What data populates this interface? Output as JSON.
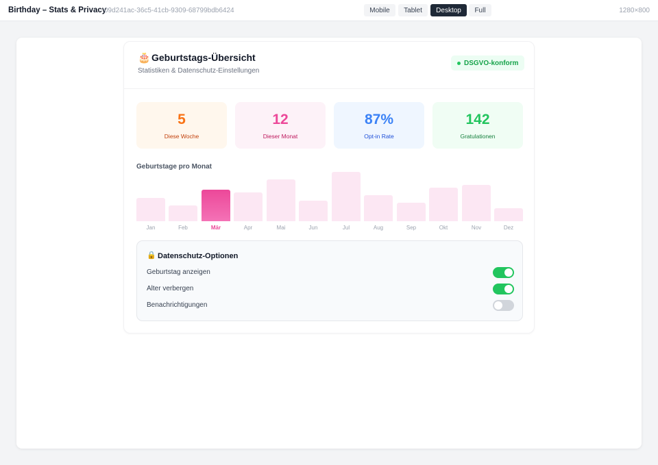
{
  "topbar": {
    "title": "Birthday – Stats & Privacy",
    "id": "09d241ac-36c5-41cb-9309-68799bdb6424",
    "views": [
      {
        "label": "Mobile",
        "active": false
      },
      {
        "label": "Tablet",
        "active": false
      },
      {
        "label": "Desktop",
        "active": true
      },
      {
        "label": "Full",
        "active": false
      }
    ],
    "resolution": "1280×800"
  },
  "header": {
    "icon": "cake-icon",
    "title": "Geburtstags-Übersicht",
    "subtitle": "Statistiken & Datenschutz-Einstellungen",
    "badge": "DSGVO-konform"
  },
  "stats": [
    {
      "value": "5",
      "label": "Diese Woche",
      "color": "#f97316"
    },
    {
      "value": "12",
      "label": "Dieser Monat",
      "color": "#ec4899"
    },
    {
      "value": "87%",
      "label": "Opt-in Rate",
      "color": "#3b82f6"
    },
    {
      "value": "142",
      "label": "Gratulationen",
      "color": "#22c55e"
    }
  ],
  "chart": {
    "title": "Geburtstage pro Monat",
    "highlight_color": "#ec4899"
  },
  "chart_data": {
    "type": "bar",
    "categories": [
      "Jan",
      "Feb",
      "Mär",
      "Apr",
      "Mai",
      "Jun",
      "Jul",
      "Aug",
      "Sep",
      "Okt",
      "Nov",
      "Dez"
    ],
    "values": [
      9,
      6,
      12,
      11,
      16,
      8,
      19,
      10,
      7,
      13,
      14,
      5
    ],
    "highlighted": "Mär",
    "ylim": [
      0,
      20
    ],
    "grid": false
  },
  "privacy": {
    "icon": "lock-icon",
    "title": "Datenschutz-Optionen",
    "options": [
      {
        "label": "Geburtstag anzeigen",
        "enabled": true
      },
      {
        "label": "Alter verbergen",
        "enabled": true
      },
      {
        "label": "Benachrichtigungen",
        "enabled": false
      }
    ]
  }
}
